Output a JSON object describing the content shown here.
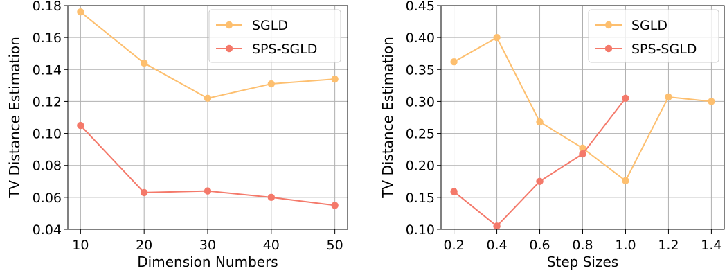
{
  "chart_data": [
    {
      "type": "line",
      "xlabel": "Dimension Numbers",
      "ylabel": "TV Distance Estimation",
      "x": [
        10,
        20,
        30,
        40,
        50
      ],
      "x_ticks": [
        "10",
        "20",
        "30",
        "40",
        "50"
      ],
      "xlim": [
        8,
        52
      ],
      "ylim": [
        0.04,
        0.18
      ],
      "y_ticks": [
        "0.04",
        "0.06",
        "0.08",
        "0.10",
        "0.12",
        "0.14",
        "0.16",
        "0.18"
      ],
      "grid": true,
      "legend_position": "top-right",
      "series": [
        {
          "name": "SGLD",
          "color": "#fdbf6f",
          "x": [
            10,
            20,
            30,
            40,
            50
          ],
          "values": [
            0.176,
            0.144,
            0.122,
            0.131,
            0.134
          ]
        },
        {
          "name": "SPS-SGLD",
          "color": "#f4796a",
          "x": [
            10,
            20,
            30,
            40,
            50
          ],
          "values": [
            0.105,
            0.063,
            0.064,
            0.06,
            0.055
          ]
        }
      ]
    },
    {
      "type": "line",
      "xlabel": "Step Sizes",
      "ylabel": "TV Distance Estimation",
      "x": [
        0.2,
        0.4,
        0.6,
        0.8,
        1.0,
        1.2,
        1.4
      ],
      "x_ticks": [
        "0.2",
        "0.4",
        "0.6",
        "0.8",
        "1.0",
        "1.2",
        "1.4"
      ],
      "xlim": [
        0.14,
        1.46
      ],
      "ylim": [
        0.1,
        0.45
      ],
      "y_ticks": [
        "0.10",
        "0.15",
        "0.20",
        "0.25",
        "0.30",
        "0.35",
        "0.40",
        "0.45"
      ],
      "grid": true,
      "legend_position": "top-right",
      "series": [
        {
          "name": "SGLD",
          "color": "#fdbf6f",
          "x": [
            0.2,
            0.4,
            0.6,
            0.8,
            1.0,
            1.2,
            1.4
          ],
          "values": [
            0.362,
            0.4,
            0.268,
            0.227,
            0.176,
            0.307,
            0.3
          ]
        },
        {
          "name": "SPS-SGLD",
          "color": "#f4796a",
          "x": [
            0.2,
            0.4,
            0.6,
            0.8,
            1.0
          ],
          "values": [
            0.159,
            0.105,
            0.175,
            0.218,
            0.305
          ]
        }
      ]
    }
  ]
}
